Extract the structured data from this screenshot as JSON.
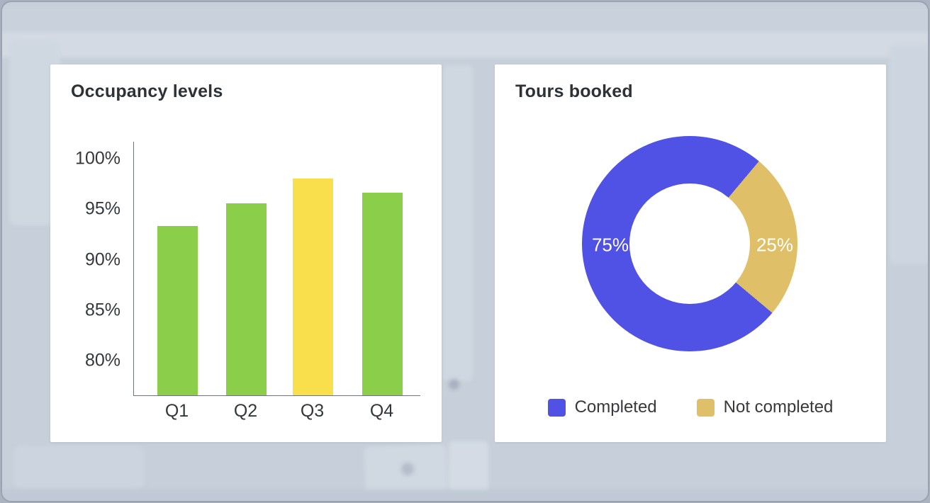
{
  "occupancy_card": {
    "title": "Occupancy levels"
  },
  "tours_card": {
    "title": "Tours booked"
  },
  "colors": {
    "bar_green": "#8bce4a",
    "bar_yellow": "#f8df4b",
    "donut_blue": "#5052e6",
    "donut_gold": "#dfc068",
    "axis_line": "#6f747b",
    "text_dark": "#2d3237",
    "card_bg": "#ffffff",
    "desktop_bg": "#c7cfda"
  },
  "chart_data": [
    {
      "type": "bar",
      "title": "Occupancy levels",
      "categories": [
        "Q1",
        "Q2",
        "Q3",
        "Q4"
      ],
      "values": [
        93.3,
        95.5,
        98,
        96.6
      ],
      "unit": "%",
      "xlabel": "",
      "ylabel": "",
      "yticks": [
        100,
        95,
        90,
        85,
        80
      ],
      "ytick_labels": [
        "100%",
        "95%",
        "90%",
        "85%",
        "80%"
      ],
      "ylim": [
        76.5,
        101.7
      ],
      "grid": false,
      "bar_colors": [
        "#8bce4a",
        "#8bce4a",
        "#f8df4b",
        "#8bce4a"
      ]
    },
    {
      "type": "pie",
      "title": "Tours booked",
      "donut": true,
      "start_angle_deg": 40,
      "legend_position": "bottom",
      "slices": [
        {
          "label": "Completed",
          "value": 75,
          "display": "75%",
          "color": "#5052e6"
        },
        {
          "label": "Not completed",
          "value": 25,
          "display": "25%",
          "color": "#dfc068"
        }
      ]
    }
  ]
}
